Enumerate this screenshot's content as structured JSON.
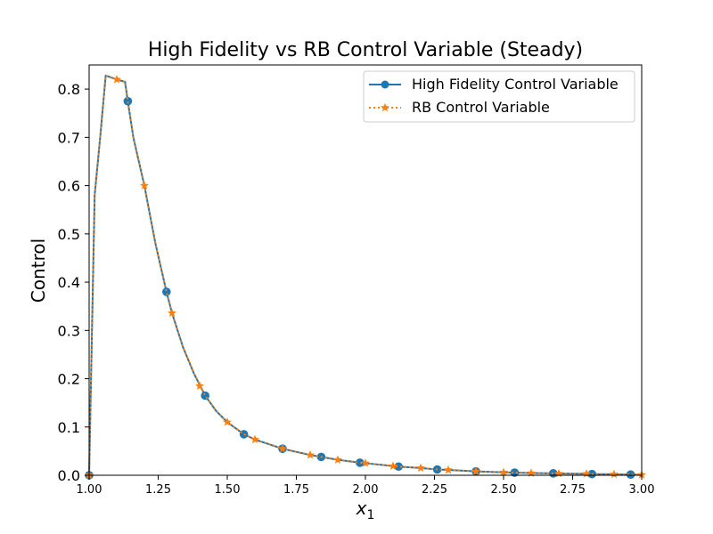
{
  "chart_data": {
    "type": "line",
    "title": "High Fidelity vs RB Control Variable (Steady)",
    "xlabel": "x",
    "xlabel_subscript": "1",
    "ylabel": "Control",
    "xlim": [
      1.0,
      3.0
    ],
    "ylim": [
      0.0,
      0.85
    ],
    "x_ticks": [
      "1.00",
      "1.25",
      "1.50",
      "1.75",
      "2.00",
      "2.25",
      "2.50",
      "2.75",
      "3.00"
    ],
    "y_ticks": [
      "0.0",
      "0.1",
      "0.2",
      "0.3",
      "0.4",
      "0.5",
      "0.6",
      "0.7",
      "0.8"
    ],
    "grid": false,
    "legend_position": "top-right",
    "series": [
      {
        "name": "High Fidelity Control Variable",
        "color": "#1f77b4",
        "line_style": "solid",
        "marker": "circle",
        "x": [
          1.0,
          1.02,
          1.04,
          1.06,
          1.1,
          1.13,
          1.14,
          1.16,
          1.2,
          1.24,
          1.28,
          1.3,
          1.34,
          1.38,
          1.42,
          1.46,
          1.5,
          1.56,
          1.6,
          1.7,
          1.8,
          1.84,
          1.9,
          1.98,
          2.0,
          2.12,
          2.2,
          2.26,
          2.3,
          2.4,
          2.5,
          2.54,
          2.6,
          2.68,
          2.7,
          2.8,
          2.82,
          2.9,
          2.96,
          3.0
        ],
        "y": [
          0.0,
          0.58,
          0.7,
          0.828,
          0.82,
          0.815,
          0.775,
          0.7,
          0.6,
          0.48,
          0.38,
          0.336,
          0.265,
          0.21,
          0.165,
          0.133,
          0.11,
          0.085,
          0.074,
          0.055,
          0.042,
          0.038,
          0.032,
          0.026,
          0.025,
          0.018,
          0.015,
          0.012,
          0.011,
          0.008,
          0.006,
          0.0055,
          0.0045,
          0.004,
          0.0035,
          0.003,
          0.0025,
          0.002,
          0.0015,
          0.001
        ],
        "marker_x": [
          1.0,
          1.14,
          1.28,
          1.42,
          1.56,
          1.7,
          1.84,
          1.98,
          2.12,
          2.26,
          2.4,
          2.54,
          2.68,
          2.82,
          2.96
        ],
        "marker_y": [
          0.0,
          0.775,
          0.38,
          0.165,
          0.085,
          0.055,
          0.038,
          0.026,
          0.018,
          0.012,
          0.008,
          0.0055,
          0.004,
          0.0025,
          0.0015
        ]
      },
      {
        "name": "RB Control Variable",
        "color": "#ff7f0e",
        "line_style": "dotted",
        "marker": "star",
        "x": [
          1.0,
          1.02,
          1.04,
          1.06,
          1.1,
          1.13,
          1.14,
          1.16,
          1.2,
          1.24,
          1.28,
          1.3,
          1.34,
          1.38,
          1.42,
          1.46,
          1.5,
          1.56,
          1.6,
          1.7,
          1.8,
          1.84,
          1.9,
          1.98,
          2.0,
          2.12,
          2.2,
          2.26,
          2.3,
          2.4,
          2.5,
          2.54,
          2.6,
          2.68,
          2.7,
          2.8,
          2.82,
          2.9,
          2.96,
          3.0
        ],
        "y": [
          0.0,
          0.58,
          0.7,
          0.828,
          0.82,
          0.815,
          0.775,
          0.7,
          0.6,
          0.48,
          0.38,
          0.336,
          0.265,
          0.21,
          0.165,
          0.133,
          0.11,
          0.085,
          0.074,
          0.055,
          0.042,
          0.038,
          0.032,
          0.026,
          0.025,
          0.018,
          0.015,
          0.012,
          0.011,
          0.008,
          0.006,
          0.0055,
          0.0045,
          0.004,
          0.0035,
          0.003,
          0.0025,
          0.002,
          0.0015,
          0.001
        ],
        "marker_x": [
          1.0,
          1.1,
          1.2,
          1.3,
          1.4,
          1.5,
          1.6,
          1.7,
          1.8,
          1.9,
          2.0,
          2.1,
          2.2,
          2.3,
          2.4,
          2.5,
          2.6,
          2.7,
          2.8,
          2.9,
          3.0
        ],
        "marker_y": [
          0.0,
          0.82,
          0.6,
          0.336,
          0.185,
          0.11,
          0.074,
          0.055,
          0.042,
          0.032,
          0.025,
          0.019,
          0.015,
          0.011,
          0.008,
          0.006,
          0.0045,
          0.0035,
          0.003,
          0.002,
          0.001
        ]
      }
    ]
  }
}
